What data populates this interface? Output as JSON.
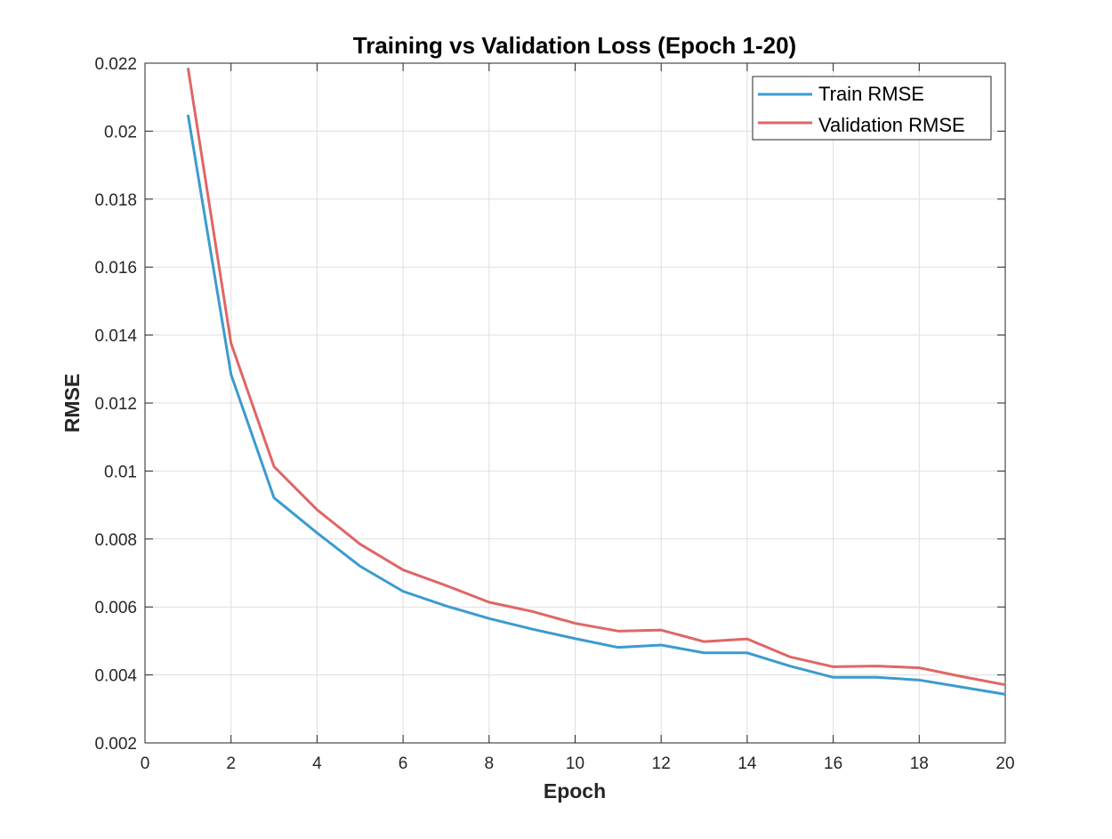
{
  "chart_data": {
    "type": "line",
    "title": "Training vs Validation Loss (Epoch 1-20)",
    "xlabel": "Epoch",
    "ylabel": "RMSE",
    "xlim": [
      0,
      20
    ],
    "ylim": [
      0.002,
      0.022
    ],
    "xticks": [
      "0",
      "2",
      "4",
      "6",
      "8",
      "10",
      "12",
      "14",
      "16",
      "18",
      "20"
    ],
    "yticks": [
      "0.002",
      "0.004",
      "0.006",
      "0.008",
      "0.01",
      "0.012",
      "0.014",
      "0.016",
      "0.018",
      "0.02",
      "0.022"
    ],
    "grid": true,
    "legend_position": "top-right",
    "x": [
      1,
      2,
      3,
      4,
      5,
      6,
      7,
      8,
      9,
      10,
      11,
      12,
      13,
      14,
      15,
      16,
      17,
      18,
      19,
      20
    ],
    "series": [
      {
        "name": "Train RMSE",
        "color": "#3b9bd0",
        "values": [
          0.02048,
          0.01284,
          0.00921,
          0.00818,
          0.0072,
          0.00646,
          0.00603,
          0.00566,
          0.00535,
          0.00507,
          0.00481,
          0.00488,
          0.00465,
          0.00465,
          0.00426,
          0.00393,
          0.00393,
          0.00385,
          0.00364,
          0.00343
        ]
      },
      {
        "name": "Validation RMSE",
        "color": "#e06666",
        "values": [
          0.02186,
          0.01376,
          0.01013,
          0.00886,
          0.00785,
          0.00709,
          0.00663,
          0.00614,
          0.00587,
          0.00552,
          0.00529,
          0.00532,
          0.00498,
          0.00506,
          0.00453,
          0.00424,
          0.00426,
          0.00421,
          0.00395,
          0.00371
        ]
      }
    ]
  }
}
